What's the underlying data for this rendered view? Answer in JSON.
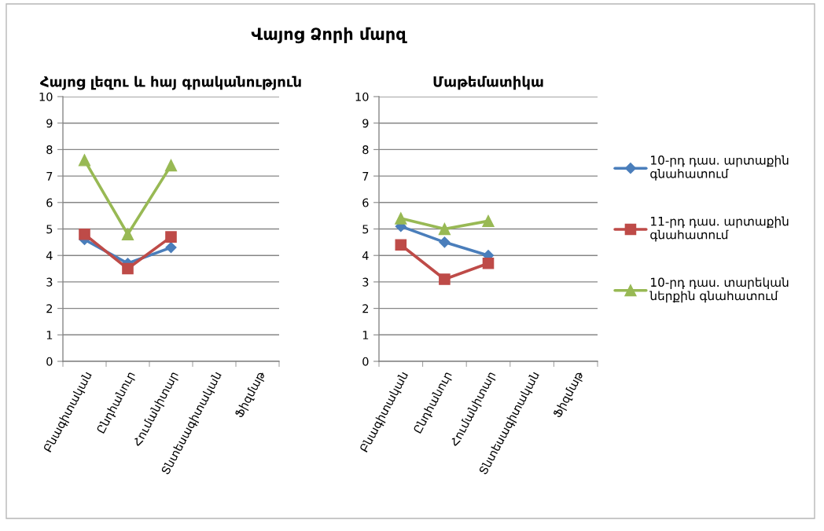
{
  "chart_data": [
    {
      "type": "line",
      "title": "Վայոց Ձորի մարզ",
      "subtitle": "Հայոց լեզու և հայ գրականություն",
      "categories": [
        "Բնագիտական",
        "Ընդհանուր",
        "Հումանիտար",
        "Տնտեսագիտական",
        "Ֆիզմաթ"
      ],
      "series": [
        {
          "color": "#4a7ebb",
          "marker": "diamond",
          "values": [
            4.6,
            3.7,
            4.3,
            null,
            null
          ]
        },
        {
          "color": "#be4b48",
          "marker": "square",
          "values": [
            4.8,
            3.5,
            4.7,
            null,
            null
          ]
        },
        {
          "color": "#98b954",
          "marker": "triangle",
          "values": [
            7.6,
            4.8,
            7.4,
            null,
            null
          ]
        }
      ],
      "ylim": [
        0,
        10
      ],
      "yticks": [
        0,
        1,
        2,
        3,
        4,
        5,
        6,
        7,
        8,
        9,
        10
      ],
      "grid": "y",
      "line_style": "solid"
    },
    {
      "type": "line",
      "subtitle": "Մաթեմատիկա",
      "categories": [
        "Բնագիտական",
        "Ընդհանուր",
        "Հումանիտար",
        "Տնտեսագիտական",
        "Ֆիզմաթ"
      ],
      "series": [
        {
          "name": "10-րդ դաս. արտաքին գնահատում",
          "color": "#4a7ebb",
          "marker": "diamond",
          "values": [
            5.1,
            4.5,
            4.0,
            null,
            null
          ]
        },
        {
          "name": "11-րդ դաս. արտաքին գնահատում",
          "color": "#be4b48",
          "marker": "square",
          "values": [
            4.4,
            3.1,
            3.7,
            null,
            null
          ]
        },
        {
          "name": "10-րդ դաս. տարեկան ներքին գնահատում",
          "color": "#98b954",
          "marker": "triangle",
          "values": [
            5.4,
            5.0,
            5.3,
            null,
            null
          ]
        }
      ],
      "ylim": [
        0,
        10
      ],
      "yticks": [
        0,
        1,
        2,
        3,
        4,
        5,
        6,
        7,
        8,
        9,
        10
      ],
      "grid": "y",
      "line_style": "solid",
      "legend": "right"
    }
  ]
}
